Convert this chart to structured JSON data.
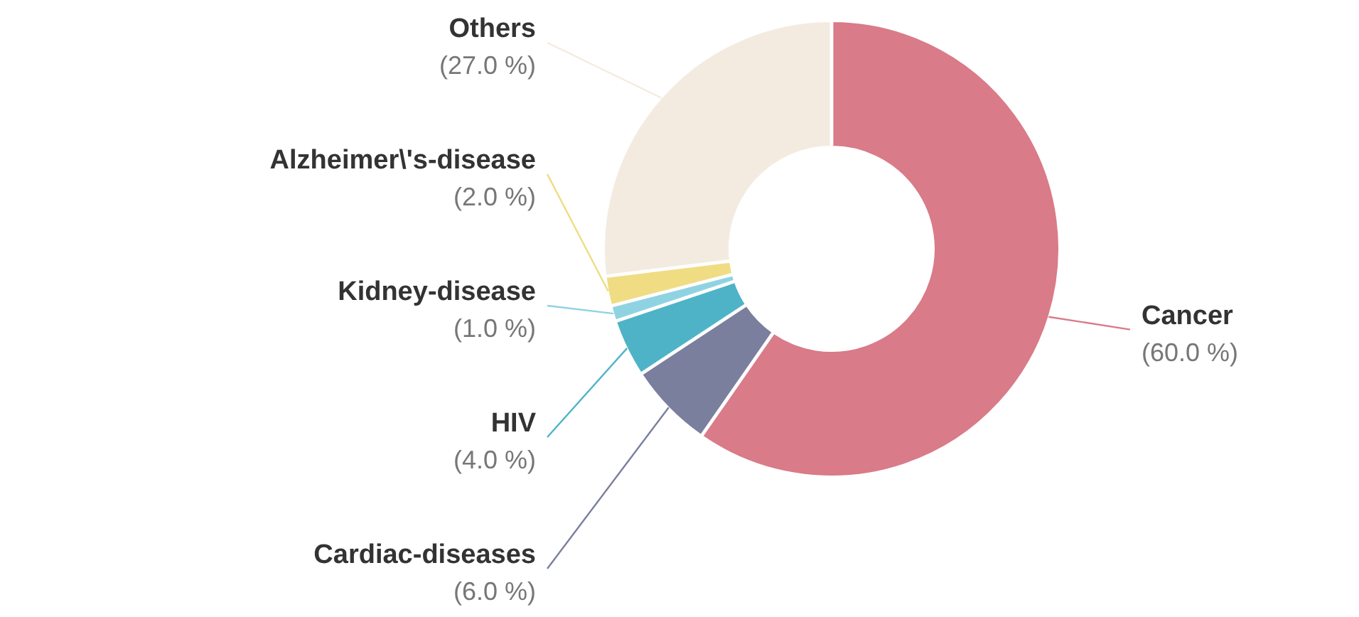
{
  "chart_data": {
    "type": "donut",
    "categories": [
      "Cancer",
      "Cardiac-diseases",
      "HIV",
      "Kidney-disease",
      "Alzheimer\\'s-disease",
      "Others"
    ],
    "values": [
      60,
      6,
      4,
      1,
      2,
      27
    ],
    "colors": [
      "#d97b88",
      "#7a7f9e",
      "#4fb3c8",
      "#8fd3e3",
      "#f0dc82",
      "#f3ebe0"
    ],
    "value_labels": [
      "(60.0 %)",
      "(6.0 %)",
      "(4.0 %)",
      "(1.0 %)",
      "(2.0 %)",
      "(27.0 %)"
    ]
  }
}
